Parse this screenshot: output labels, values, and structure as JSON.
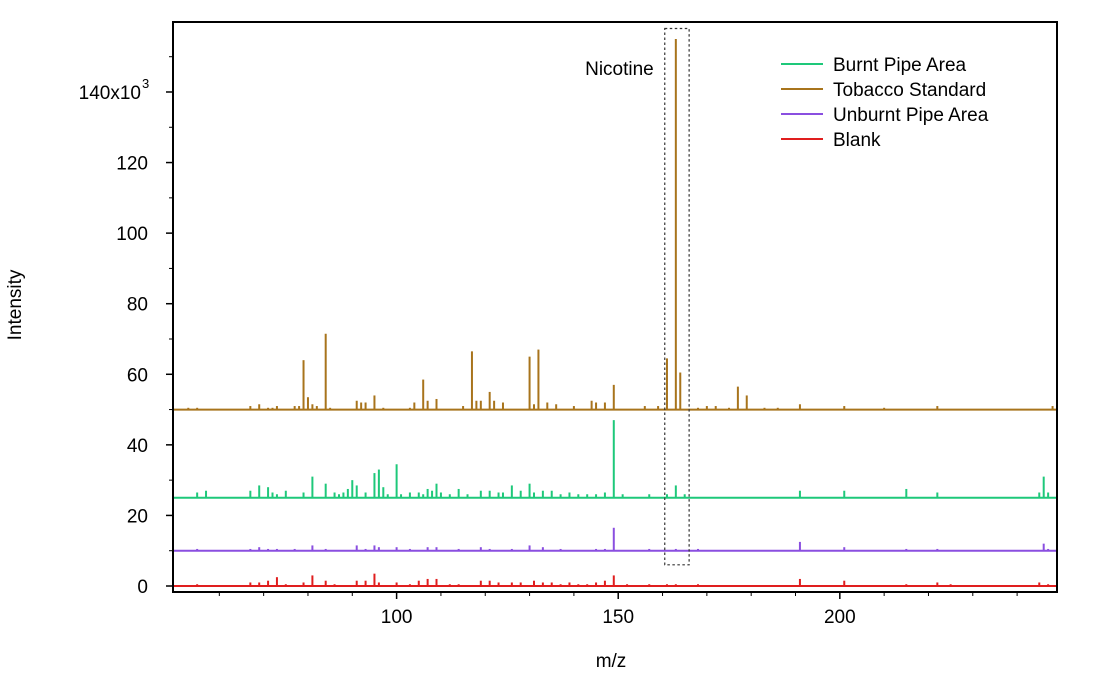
{
  "chart_data": {
    "type": "line",
    "xlabel": "m/z",
    "ylabel": "Intensity",
    "xlim": [
      50,
      249
    ],
    "ylim": [
      0,
      157000
    ],
    "x_ticks": [
      {
        "value": 100,
        "label": "100"
      },
      {
        "value": 150,
        "label": "150"
      },
      {
        "value": 200,
        "label": "200"
      }
    ],
    "y_ticks": [
      {
        "value": 0,
        "label": "0"
      },
      {
        "value": 20000,
        "label": "20"
      },
      {
        "value": 40000,
        "label": "40"
      },
      {
        "value": 60000,
        "label": "60"
      },
      {
        "value": 80000,
        "label": "80"
      },
      {
        "value": 100000,
        "label": "100"
      },
      {
        "value": 120000,
        "label": "120"
      }
    ],
    "y_top_tick": {
      "value": 140000,
      "label": "140x10",
      "exponent": "3"
    },
    "grid": false,
    "legend_position": "top-right",
    "annotation": {
      "text": "Nicotine",
      "x_range": [
        160.5,
        166
      ],
      "y_range": [
        6000,
        158000
      ]
    },
    "series": [
      {
        "name": "Burnt Pipe Area",
        "color": "#1ec87a",
        "baseline": 25000,
        "peaks": [
          [
            55,
            1.5
          ],
          [
            57,
            2
          ],
          [
            67,
            2
          ],
          [
            69,
            3.5
          ],
          [
            71,
            3
          ],
          [
            72,
            1.5
          ],
          [
            73,
            1
          ],
          [
            75,
            2
          ],
          [
            79,
            1.5
          ],
          [
            81,
            6
          ],
          [
            84,
            4
          ],
          [
            86,
            1.5
          ],
          [
            87,
            1
          ],
          [
            88,
            1.5
          ],
          [
            89,
            2.5
          ],
          [
            90,
            5
          ],
          [
            91,
            3.5
          ],
          [
            93,
            1.5
          ],
          [
            95,
            7
          ],
          [
            96,
            8
          ],
          [
            97,
            3
          ],
          [
            98,
            1
          ],
          [
            100,
            9.5
          ],
          [
            101,
            1
          ],
          [
            103,
            1.5
          ],
          [
            105,
            1.5
          ],
          [
            106,
            1
          ],
          [
            107,
            2.5
          ],
          [
            108,
            2
          ],
          [
            109,
            4
          ],
          [
            110,
            1.5
          ],
          [
            112,
            1
          ],
          [
            114,
            2.5
          ],
          [
            116,
            1
          ],
          [
            119,
            2
          ],
          [
            121,
            2
          ],
          [
            123,
            1.5
          ],
          [
            124,
            1.5
          ],
          [
            126,
            3.5
          ],
          [
            128,
            2
          ],
          [
            130,
            4
          ],
          [
            131,
            1.5
          ],
          [
            133,
            2
          ],
          [
            135,
            2
          ],
          [
            137,
            1
          ],
          [
            139,
            1.5
          ],
          [
            141,
            1
          ],
          [
            143,
            1
          ],
          [
            145,
            1
          ],
          [
            147,
            1.5
          ],
          [
            149,
            22
          ],
          [
            151,
            1
          ],
          [
            157,
            1
          ],
          [
            161,
            1
          ],
          [
            163,
            3.5
          ],
          [
            165,
            1
          ],
          [
            191,
            2
          ],
          [
            201,
            2
          ],
          [
            215,
            2.5
          ],
          [
            222,
            1.5
          ],
          [
            245,
            1.5
          ],
          [
            246,
            6
          ],
          [
            247,
            1.5
          ]
        ]
      },
      {
        "name": "Tobacco Standard",
        "color": "#a8741c",
        "baseline": 50000,
        "peaks": [
          [
            53,
            0.5
          ],
          [
            55,
            0.5
          ],
          [
            67,
            1
          ],
          [
            69,
            1.5
          ],
          [
            71,
            0.5
          ],
          [
            72,
            0.5
          ],
          [
            73,
            1
          ],
          [
            77,
            1
          ],
          [
            78,
            1
          ],
          [
            79,
            14
          ],
          [
            80,
            3.5
          ],
          [
            81,
            1.5
          ],
          [
            82,
            1
          ],
          [
            84,
            21.5
          ],
          [
            85,
            0.5
          ],
          [
            91,
            2.5
          ],
          [
            92,
            2
          ],
          [
            93,
            2
          ],
          [
            95,
            4
          ],
          [
            97,
            0.5
          ],
          [
            103,
            0.5
          ],
          [
            104,
            2
          ],
          [
            106,
            8.5
          ],
          [
            107,
            2.5
          ],
          [
            109,
            3
          ],
          [
            115,
            1
          ],
          [
            117,
            16.5
          ],
          [
            118,
            2.5
          ],
          [
            119,
            2.5
          ],
          [
            121,
            5
          ],
          [
            122,
            2.5
          ],
          [
            124,
            2
          ],
          [
            130,
            15
          ],
          [
            131,
            1.5
          ],
          [
            132,
            17
          ],
          [
            134,
            2
          ],
          [
            136,
            1.5
          ],
          [
            140,
            1
          ],
          [
            144,
            2.5
          ],
          [
            145,
            2
          ],
          [
            147,
            2
          ],
          [
            149,
            7
          ],
          [
            156,
            1
          ],
          [
            159,
            1
          ],
          [
            161,
            14.5
          ],
          [
            163,
            105
          ],
          [
            164,
            10.5
          ],
          [
            168,
            0.5
          ],
          [
            170,
            1
          ],
          [
            172,
            1
          ],
          [
            175,
            0.5
          ],
          [
            177,
            6.5
          ],
          [
            179,
            4
          ],
          [
            183,
            0.5
          ],
          [
            186,
            0.5
          ],
          [
            191,
            1.5
          ],
          [
            201,
            1
          ],
          [
            210,
            0.5
          ],
          [
            222,
            1
          ],
          [
            248,
            1
          ]
        ]
      },
      {
        "name": "Unburnt Pipe Area",
        "color": "#8a4fe0",
        "baseline": 10000,
        "peaks": [
          [
            55,
            0.5
          ],
          [
            67,
            0.5
          ],
          [
            69,
            1
          ],
          [
            71,
            0.5
          ],
          [
            73,
            0.5
          ],
          [
            77,
            0.5
          ],
          [
            81,
            1.5
          ],
          [
            84,
            0.5
          ],
          [
            91,
            1.5
          ],
          [
            93,
            0.5
          ],
          [
            95,
            1.5
          ],
          [
            96,
            1
          ],
          [
            100,
            1
          ],
          [
            103,
            0.5
          ],
          [
            107,
            1
          ],
          [
            109,
            1
          ],
          [
            114,
            0.5
          ],
          [
            119,
            1
          ],
          [
            121,
            0.5
          ],
          [
            126,
            0.5
          ],
          [
            130,
            1.5
          ],
          [
            133,
            1
          ],
          [
            137,
            0.5
          ],
          [
            145,
            0.5
          ],
          [
            147,
            0.5
          ],
          [
            149,
            6.5
          ],
          [
            157,
            0.5
          ],
          [
            163,
            0.5
          ],
          [
            168,
            0.5
          ],
          [
            191,
            2.5
          ],
          [
            201,
            1
          ],
          [
            215,
            0.5
          ],
          [
            222,
            0.5
          ],
          [
            246,
            2
          ],
          [
            247,
            0.5
          ]
        ]
      },
      {
        "name": "Blank",
        "color": "#e01e1e",
        "baseline": 0,
        "peaks": [
          [
            55,
            0.5
          ],
          [
            67,
            1
          ],
          [
            69,
            1
          ],
          [
            71,
            1.5
          ],
          [
            73,
            2.5
          ],
          [
            75,
            0.5
          ],
          [
            79,
            1
          ],
          [
            81,
            3
          ],
          [
            84,
            1.5
          ],
          [
            86,
            0.5
          ],
          [
            91,
            1.5
          ],
          [
            93,
            1.5
          ],
          [
            95,
            3.5
          ],
          [
            96,
            1
          ],
          [
            100,
            1
          ],
          [
            103,
            0.5
          ],
          [
            105,
            1.5
          ],
          [
            107,
            2
          ],
          [
            109,
            2
          ],
          [
            112,
            0.5
          ],
          [
            114,
            0.5
          ],
          [
            119,
            1.5
          ],
          [
            121,
            1.5
          ],
          [
            123,
            1
          ],
          [
            126,
            1
          ],
          [
            128,
            1
          ],
          [
            131,
            1.5
          ],
          [
            133,
            1
          ],
          [
            135,
            1
          ],
          [
            137,
            0.5
          ],
          [
            139,
            1
          ],
          [
            141,
            0.5
          ],
          [
            143,
            0.5
          ],
          [
            145,
            1
          ],
          [
            147,
            1.5
          ],
          [
            149,
            3
          ],
          [
            152,
            0.5
          ],
          [
            157,
            0.5
          ],
          [
            161,
            0.5
          ],
          [
            163,
            0.5
          ],
          [
            168,
            0.5
          ],
          [
            191,
            2
          ],
          [
            201,
            1.5
          ],
          [
            215,
            0.5
          ],
          [
            222,
            1
          ],
          [
            225,
            0.5
          ],
          [
            245,
            1
          ],
          [
            247,
            0.5
          ]
        ]
      }
    ]
  }
}
